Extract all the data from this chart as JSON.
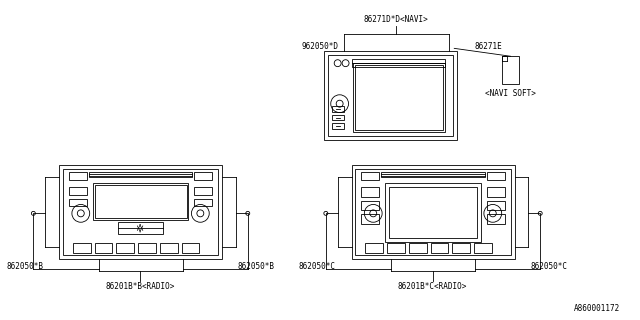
{
  "bg_color": "#ffffff",
  "line_color": "#000000",
  "fig_width": 6.4,
  "fig_height": 3.2,
  "watermark": "A860001172",
  "labels": {
    "navi_unit": "86271D*D<NAVI>",
    "navi_connector_left": "962050*D",
    "navi_connector_right": "86271E",
    "navi_soft": "<NAVI SOFT>",
    "radio_b_left": "862050*B",
    "radio_b_right": "862050*B",
    "radio_b_center": "86201B*B<RADIO>",
    "radio_c_left": "862050*C",
    "radio_c_right": "862050*C",
    "radio_c_center": "86201B*C<RADIO>"
  }
}
